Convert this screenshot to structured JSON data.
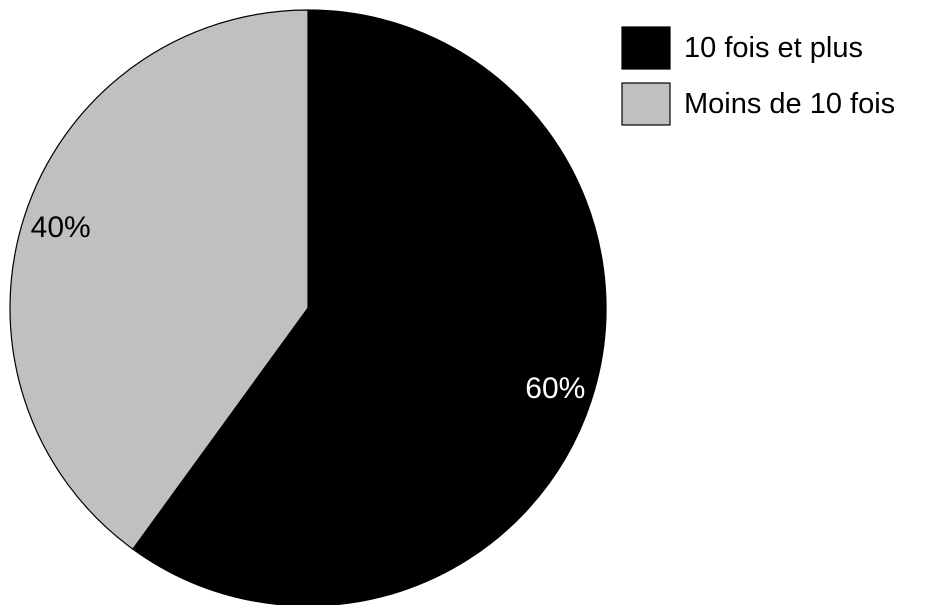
{
  "chart_data": {
    "type": "pie",
    "title": "",
    "categories": [
      "10 fois et plus",
      "Moins de 10 fois"
    ],
    "values": [
      60,
      40
    ],
    "labels": [
      "60%",
      "40%"
    ],
    "colors": [
      "#000000",
      "#c0c0c0"
    ],
    "label_colors": [
      "#ffffff",
      "#000000"
    ],
    "start_angle_deg": 0,
    "direction": "clockwise",
    "legend_position": "top-right"
  }
}
